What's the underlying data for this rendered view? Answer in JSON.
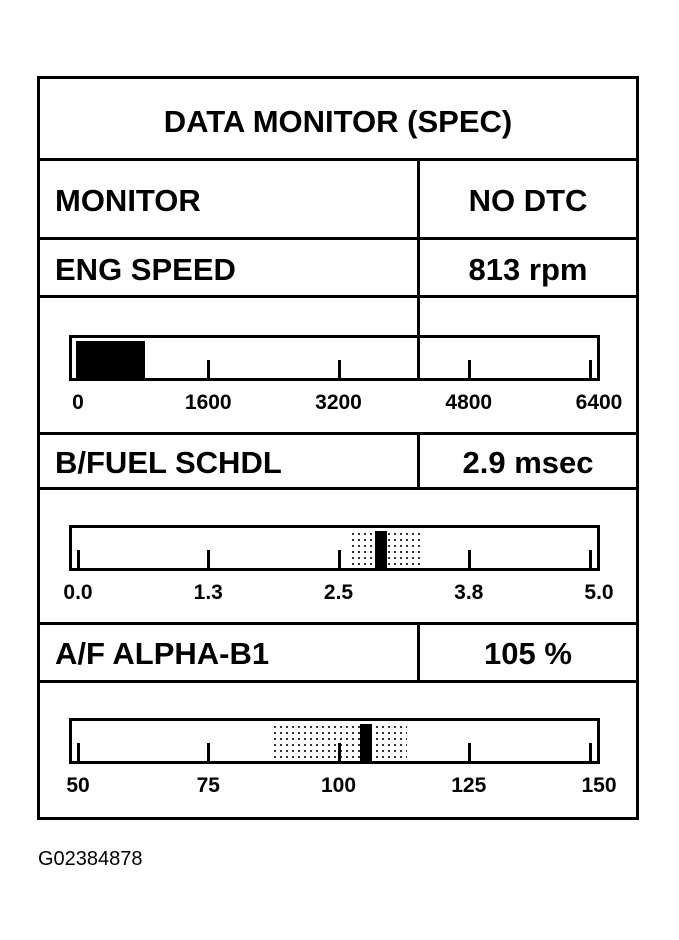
{
  "title": "DATA MONITOR (SPEC)",
  "rows": [
    {
      "label": "MONITOR",
      "value": "NO DTC"
    },
    {
      "label": "ENG SPEED",
      "value": "813 rpm"
    },
    {
      "label": "B/FUEL SCHDL",
      "value": "2.9 msec"
    },
    {
      "label": "A/F ALPHA-B1",
      "value": "105 %"
    }
  ],
  "gauges": [
    {
      "min": 0,
      "max": 6400,
      "ticks": [
        "0",
        "1600",
        "3200",
        "4800",
        "6400"
      ],
      "style": "filled",
      "value": 813
    },
    {
      "min": 0,
      "max": 5,
      "ticks": [
        "0.0",
        "1.3",
        "2.5",
        "3.8",
        "5.0"
      ],
      "style": "marker",
      "value": 2.9,
      "spec_range": [
        2.6,
        3.3
      ]
    },
    {
      "min": 50,
      "max": 150,
      "ticks": [
        "50",
        "75",
        "100",
        "125",
        "150"
      ],
      "style": "marker",
      "value": 105,
      "spec_range": [
        87,
        113
      ]
    }
  ],
  "figure_id": "G02384878"
}
